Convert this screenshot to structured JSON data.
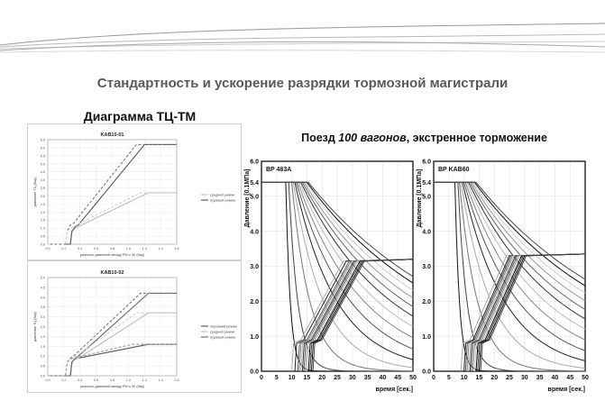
{
  "slide": {
    "title": "Стандартность и ускорение разрядки тормозной магистрали",
    "left_title": "Диаграмма ТЦ-ТМ",
    "right_title": {
      "pre": "Поезд ",
      "italic": "100 вагонов",
      "post": ", экстренное торможение"
    }
  },
  "chart_data": [
    {
      "type": "line",
      "title": "KAB10-01",
      "xlabel": "разность давлений между РМ и ЗК (бар)",
      "ylabel": "давление ТЦ (бар)",
      "xlim": [
        0,
        1.6
      ],
      "ylim": [
        0,
        6.5
      ],
      "xticks": [
        "0.0",
        "0.2",
        "0.4",
        "0.6",
        "0.8",
        "1.0",
        "1.2",
        "1.4",
        "1.6"
      ],
      "yticks": [
        "0.0",
        "0.5",
        "1.0",
        "1.5",
        "2.0",
        "2.5",
        "3.0",
        "3.5",
        "4.0",
        "4.5",
        "5.0",
        "5.5",
        "6.0",
        "6.5"
      ],
      "legend": "right",
      "series": [
        {
          "name": "средний режим",
          "color": "#bdbdbd",
          "style": "solid",
          "x": [
            0,
            0.28,
            0.3,
            0.34,
            0.38,
            1.25,
            1.6
          ],
          "y": [
            0,
            0,
            0.8,
            1.0,
            1.1,
            3.2,
            3.2
          ]
        },
        {
          "name": "грузовой режим",
          "color": "#555555",
          "style": "solid",
          "x": [
            0,
            0.28,
            0.3,
            0.34,
            0.38,
            1.2,
            1.6
          ],
          "y": [
            0,
            0,
            0.8,
            1.1,
            1.2,
            6.2,
            6.2
          ]
        },
        {
          "name": "",
          "color": "#777777",
          "style": "dashed",
          "x": [
            0,
            0.22,
            0.24,
            0.28,
            0.32,
            1.1,
            1.6
          ],
          "y": [
            0,
            0,
            0.8,
            1.2,
            1.3,
            6.2,
            6.2
          ]
        },
        {
          "name": "",
          "color": "#cfcfcf",
          "style": "dashed",
          "x": [
            0,
            0.22,
            0.24,
            0.28,
            0.32,
            1.15,
            1.6
          ],
          "y": [
            0,
            0,
            0.8,
            1.0,
            1.1,
            3.2,
            3.2
          ]
        }
      ]
    },
    {
      "type": "line",
      "title": "KAB10-02",
      "xlabel": "разность давлений между РМ и ЗК (бар)",
      "ylabel": "давление ТЦ (бар)",
      "xlim": [
        0,
        1.6
      ],
      "ylim": [
        0,
        5.0
      ],
      "xticks": [
        "0.0",
        "0.2",
        "0.4",
        "0.6",
        "0.8",
        "1.0",
        "1.2",
        "1.4",
        "1.6"
      ],
      "yticks": [
        "0.0",
        "0.5",
        "1.0",
        "1.5",
        "2.0",
        "2.5",
        "3.0",
        "3.5",
        "4.0",
        "4.5",
        "5.0"
      ],
      "legend": "right",
      "series": [
        {
          "name": "порожний режим",
          "color": "#555555",
          "style": "solid",
          "x": [
            0,
            0.28,
            0.3,
            0.34,
            0.38,
            1.25,
            1.6
          ],
          "y": [
            0,
            0,
            0.7,
            0.85,
            0.9,
            1.6,
            1.6
          ]
        },
        {
          "name": "средний режим",
          "color": "#bdbdbd",
          "style": "solid",
          "x": [
            0,
            0.28,
            0.3,
            0.34,
            0.38,
            1.25,
            1.6
          ],
          "y": [
            0,
            0,
            0.7,
            0.85,
            0.9,
            3.2,
            3.2
          ]
        },
        {
          "name": "грузовой режим",
          "color": "#666666",
          "style": "solid",
          "x": [
            0,
            0.28,
            0.3,
            0.34,
            0.38,
            1.25,
            1.6
          ],
          "y": [
            0,
            0,
            0.7,
            0.9,
            1.0,
            4.2,
            4.2
          ]
        },
        {
          "name": "",
          "color": "#777777",
          "style": "dashed",
          "x": [
            0,
            0.22,
            0.24,
            0.28,
            0.32,
            1.15,
            1.6
          ],
          "y": [
            0,
            0,
            0.7,
            0.9,
            1.0,
            4.2,
            4.2
          ]
        },
        {
          "name": "",
          "color": "#cfcfcf",
          "style": "dashed",
          "x": [
            0,
            0.22,
            0.24,
            0.28,
            0.32,
            1.1,
            1.6
          ],
          "y": [
            0,
            0,
            0.7,
            0.85,
            0.9,
            3.2,
            3.2
          ]
        },
        {
          "name": "",
          "color": "#999999",
          "style": "dashed",
          "x": [
            0,
            0.22,
            0.24,
            0.28,
            0.32,
            1.05,
            1.6
          ],
          "y": [
            0,
            0,
            0.7,
            0.85,
            0.9,
            1.6,
            1.6
          ]
        }
      ]
    },
    {
      "type": "line",
      "title": "BP 483A",
      "xlabel": "время [сек.]",
      "ylabel": "Давление [0.1МПа]",
      "xlim": [
        0,
        50
      ],
      "ylim": [
        0,
        6.0
      ],
      "xticks": [
        "0",
        "5",
        "10",
        "15",
        "20",
        "25",
        "30",
        "35",
        "40",
        "45",
        "50"
      ],
      "yticks": [
        "0.0",
        "1.0",
        "2.0",
        "3.0",
        "4.0",
        "5.0",
        "6.0"
      ],
      "extra_ytick": "5.4",
      "grid": true,
      "family": {
        "pipe": {
          "t0s": [
            8,
            9,
            10,
            10.5,
            11,
            11.5,
            12,
            12.5,
            13,
            13.5,
            14,
            14.5,
            15,
            15.5
          ],
          "tau": [
            1.5,
            3,
            6,
            10,
            14,
            18,
            22,
            26,
            30,
            34,
            38,
            42,
            46,
            50
          ]
        },
        "cyl": {
          "t0s": [
            10,
            11,
            12,
            12.5,
            13,
            13.5,
            14,
            14.5,
            15,
            15.5,
            16,
            16.5,
            17
          ],
          "final": 3.15,
          "ramp_s": 14
        }
      }
    },
    {
      "type": "line",
      "title": "BP KAB60",
      "xlabel": "время [сек.]",
      "ylabel": "Давление [0.1МПа]",
      "xlim": [
        0,
        50
      ],
      "ylim": [
        0,
        6.0
      ],
      "xticks": [
        "0",
        "5",
        "10",
        "15",
        "20",
        "25",
        "30",
        "35",
        "40",
        "45",
        "50"
      ],
      "yticks": [
        "0.0",
        "1.0",
        "2.0",
        "3.0",
        "4.0",
        "5.0",
        "6.0"
      ],
      "extra_ytick": "5.4",
      "grid": true,
      "family": {
        "pipe": {
          "t0s": [
            7,
            8,
            8.5,
            9,
            9.5,
            10,
            10.5,
            11,
            11.5,
            12,
            12.5,
            13,
            13.5,
            14
          ],
          "tau": [
            1.5,
            3,
            6,
            10,
            14,
            18,
            22,
            26,
            30,
            34,
            38,
            42,
            46,
            50
          ]
        },
        "cyl": {
          "t0s": [
            9,
            10,
            10.5,
            11,
            11.5,
            12,
            12.5,
            13,
            13.5,
            14,
            14.5,
            15,
            15.5
          ],
          "final": 3.3,
          "ramp_s": 12
        }
      }
    }
  ]
}
